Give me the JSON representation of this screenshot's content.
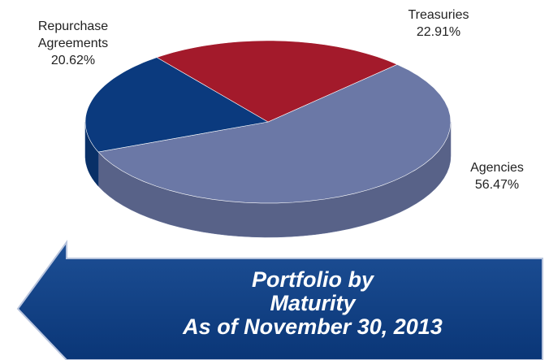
{
  "chart_data": {
    "type": "pie",
    "title": "Portfolio by Maturity",
    "subtitle": "As of November 30, 2013",
    "categories": [
      "Agencies",
      "Repurchase Agreements",
      "Treasuries"
    ],
    "values": [
      56.47,
      20.62,
      22.91
    ],
    "value_labels": [
      "56.47%",
      "20.62%",
      "22.91%"
    ],
    "colors": [
      "#6b78a6",
      "#0b3a7e",
      "#a31a2b"
    ]
  }
}
